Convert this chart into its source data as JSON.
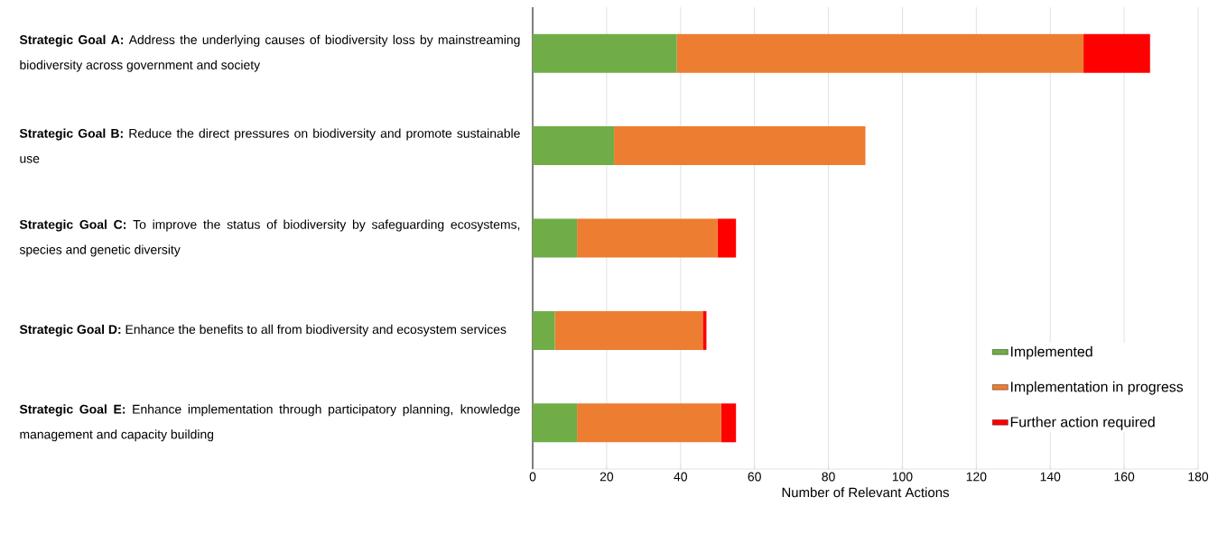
{
  "chart_data": {
    "type": "bar",
    "orientation": "horizontal",
    "stacked": true,
    "categories": [
      "**Strategic Goal A:** Address the underlying causes of biodiversity loss by mainstreaming biodiversity across government and society",
      "**Strategic Goal B:** Reduce the direct pressures on biodiversity and promote sustainable use",
      "**Strategic Goal C:** To improve the status of biodiversity by safeguarding ecosystems, species and genetic diversity",
      "**Strategic Goal D:** Enhance the benefits to all from biodiversity and ecosystem services",
      "**Strategic Goal E:** Enhance implementation through participatory planning, knowledge management and capacity building"
    ],
    "series": [
      {
        "name": "Implemented",
        "color": "#70ad47",
        "values": [
          39,
          22,
          12,
          6,
          12
        ]
      },
      {
        "name": "Implementation in progress",
        "color": "#ed7d31",
        "values": [
          110,
          68,
          38,
          40,
          39
        ]
      },
      {
        "name": "Further action required",
        "color": "#ff0000",
        "values": [
          18,
          0,
          5,
          1,
          4
        ]
      }
    ],
    "xlim": [
      0,
      180
    ],
    "xticks": [
      0,
      20,
      40,
      60,
      80,
      100,
      120,
      140,
      160,
      180
    ],
    "xlabel": "Number of Relevant Actions",
    "grid": "x",
    "legend": "bottom right"
  }
}
